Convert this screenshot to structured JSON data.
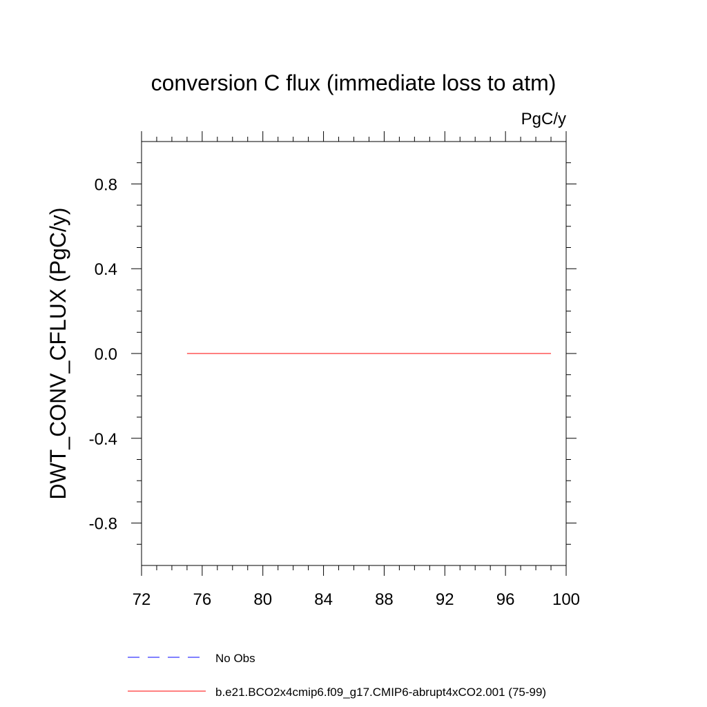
{
  "chart_data": {
    "type": "line",
    "title": "conversion C flux (immediate loss to atm)",
    "units": "PgC/y",
    "ylabel": "DWT_CONV_CFLUX  (PgC/y)",
    "xlabel": "",
    "xlim": [
      72,
      100
    ],
    "ylim": [
      -1.0,
      1.0
    ],
    "x_ticks": [
      72,
      76,
      80,
      84,
      88,
      92,
      96,
      100
    ],
    "x_tick_labels": [
      "72",
      "76",
      "80",
      "84",
      "88",
      "92",
      "96",
      "100"
    ],
    "y_ticks": [
      -0.8,
      -0.4,
      0.0,
      0.4,
      0.8
    ],
    "y_tick_labels": [
      "-0.8",
      "-0.4",
      "0.0",
      "0.4",
      "0.8"
    ],
    "grid": false,
    "legend_position": "bottom",
    "series": [
      {
        "name": "b.e21.BCO2x4cmip6.f09_g17.CMIP6-abrupt4xCO2.001 (75-99)",
        "color": "#ff0000",
        "dash": "solid",
        "x": [
          75,
          99
        ],
        "y": [
          0.0,
          0.0
        ]
      }
    ],
    "legend": [
      {
        "label": "No Obs",
        "color": "#0000ff",
        "dash": "dashed"
      },
      {
        "label": "b.e21.BCO2x4cmip6.f09_g17.CMIP6-abrupt4xCO2.001 (75-99)",
        "color": "#ff0000",
        "dash": "solid"
      }
    ]
  }
}
